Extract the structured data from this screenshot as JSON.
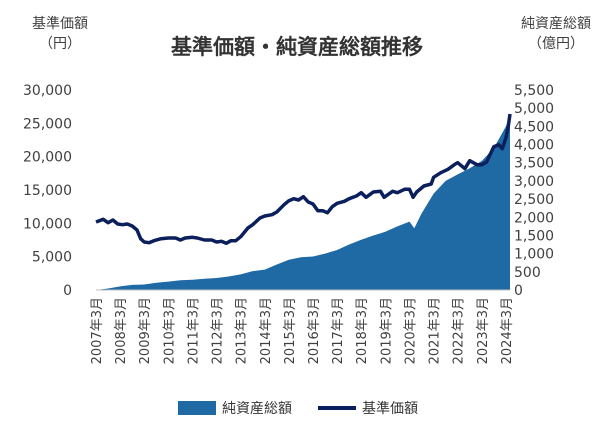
{
  "chart_data": {
    "type": "line",
    "title": "基準価額・純資産総額推移",
    "left_axis": {
      "label_line1": "基準価額",
      "label_line2": "（円）",
      "min": 0,
      "max": 30000,
      "ticks": [
        "0",
        "5,000",
        "10,000",
        "15,000",
        "20,000",
        "25,000",
        "30,000"
      ],
      "tick_values": [
        0,
        5000,
        10000,
        15000,
        20000,
        25000,
        30000
      ]
    },
    "right_axis": {
      "label_line1": "純資産総額",
      "label_line2": "（億円）",
      "min": 0,
      "max": 5500,
      "ticks": [
        "0",
        "500",
        "1,000",
        "1,500",
        "2,000",
        "2,500",
        "3,000",
        "3,500",
        "4,000",
        "4,500",
        "5,000",
        "5,500"
      ],
      "tick_values": [
        0,
        500,
        1000,
        1500,
        2000,
        2500,
        3000,
        3500,
        4000,
        4500,
        5000,
        5500
      ]
    },
    "x_labels": [
      "2007年3月",
      "2008年3月",
      "2009年3月",
      "2010年3月",
      "2011年3月",
      "2012年3月",
      "2013年3月",
      "2014年3月",
      "2015年3月",
      "2016年3月",
      "2017年3月",
      "2018年3月",
      "2019年3月",
      "2020年3月",
      "2021年3月",
      "2022年3月",
      "2023年3月",
      "2024年3月"
    ],
    "x_start": 2007.0,
    "x_end": 2024.17,
    "series": [
      {
        "name": "純資産総額",
        "kind": "area",
        "axis": "right",
        "color": "#1f6aa5",
        "points": [
          [
            2007.0,
            0
          ],
          [
            2007.5,
            40
          ],
          [
            2008.0,
            100
          ],
          [
            2008.5,
            140
          ],
          [
            2009.0,
            150
          ],
          [
            2009.5,
            200
          ],
          [
            2010.0,
            230
          ],
          [
            2010.5,
            270
          ],
          [
            2011.0,
            280
          ],
          [
            2011.5,
            310
          ],
          [
            2012.0,
            330
          ],
          [
            2012.5,
            370
          ],
          [
            2013.0,
            430
          ],
          [
            2013.5,
            520
          ],
          [
            2014.0,
            560
          ],
          [
            2014.5,
            700
          ],
          [
            2015.0,
            830
          ],
          [
            2015.5,
            900
          ],
          [
            2016.0,
            920
          ],
          [
            2016.5,
            1000
          ],
          [
            2017.0,
            1100
          ],
          [
            2017.5,
            1250
          ],
          [
            2018.0,
            1380
          ],
          [
            2018.5,
            1500
          ],
          [
            2019.0,
            1600
          ],
          [
            2019.5,
            1750
          ],
          [
            2020.0,
            1880
          ],
          [
            2020.2,
            1700
          ],
          [
            2020.5,
            2100
          ],
          [
            2021.0,
            2650
          ],
          [
            2021.5,
            3000
          ],
          [
            2022.0,
            3180
          ],
          [
            2022.5,
            3350
          ],
          [
            2023.0,
            3550
          ],
          [
            2023.5,
            3900
          ],
          [
            2024.0,
            4500
          ],
          [
            2024.17,
            4800
          ]
        ]
      },
      {
        "name": "基準価額",
        "kind": "line",
        "axis": "left",
        "color": "#0b1f5c",
        "points": [
          [
            2007.0,
            10200
          ],
          [
            2007.3,
            10600
          ],
          [
            2007.5,
            10100
          ],
          [
            2007.7,
            10500
          ],
          [
            2007.9,
            9900
          ],
          [
            2008.1,
            9800
          ],
          [
            2008.3,
            9900
          ],
          [
            2008.5,
            9600
          ],
          [
            2008.7,
            9000
          ],
          [
            2008.85,
            7700
          ],
          [
            2009.0,
            7200
          ],
          [
            2009.2,
            7100
          ],
          [
            2009.4,
            7400
          ],
          [
            2009.7,
            7700
          ],
          [
            2010.0,
            7800
          ],
          [
            2010.3,
            7800
          ],
          [
            2010.5,
            7500
          ],
          [
            2010.7,
            7800
          ],
          [
            2011.0,
            7900
          ],
          [
            2011.2,
            7800
          ],
          [
            2011.5,
            7500
          ],
          [
            2011.8,
            7500
          ],
          [
            2012.0,
            7200
          ],
          [
            2012.2,
            7300
          ],
          [
            2012.4,
            7000
          ],
          [
            2012.6,
            7400
          ],
          [
            2012.8,
            7400
          ],
          [
            2013.0,
            8000
          ],
          [
            2013.3,
            9300
          ],
          [
            2013.5,
            9800
          ],
          [
            2013.8,
            10800
          ],
          [
            2014.0,
            11100
          ],
          [
            2014.3,
            11300
          ],
          [
            2014.5,
            11700
          ],
          [
            2014.8,
            12800
          ],
          [
            2015.0,
            13400
          ],
          [
            2015.2,
            13700
          ],
          [
            2015.4,
            13500
          ],
          [
            2015.6,
            14000
          ],
          [
            2015.8,
            13200
          ],
          [
            2016.0,
            12900
          ],
          [
            2016.2,
            11900
          ],
          [
            2016.4,
            11900
          ],
          [
            2016.6,
            11600
          ],
          [
            2016.8,
            12500
          ],
          [
            2017.0,
            13000
          ],
          [
            2017.3,
            13300
          ],
          [
            2017.5,
            13700
          ],
          [
            2017.8,
            14100
          ],
          [
            2018.0,
            14600
          ],
          [
            2018.2,
            13900
          ],
          [
            2018.5,
            14700
          ],
          [
            2018.8,
            14800
          ],
          [
            2018.95,
            13900
          ],
          [
            2019.1,
            14300
          ],
          [
            2019.3,
            14800
          ],
          [
            2019.5,
            14600
          ],
          [
            2019.8,
            15100
          ],
          [
            2020.0,
            15100
          ],
          [
            2020.15,
            13900
          ],
          [
            2020.3,
            14700
          ],
          [
            2020.6,
            15600
          ],
          [
            2020.9,
            15900
          ],
          [
            2021.0,
            16900
          ],
          [
            2021.3,
            17600
          ],
          [
            2021.6,
            18100
          ],
          [
            2021.9,
            18900
          ],
          [
            2022.0,
            19100
          ],
          [
            2022.3,
            18200
          ],
          [
            2022.5,
            19400
          ],
          [
            2022.8,
            18800
          ],
          [
            2023.0,
            18800
          ],
          [
            2023.2,
            19200
          ],
          [
            2023.5,
            21500
          ],
          [
            2023.7,
            21800
          ],
          [
            2023.85,
            21200
          ],
          [
            2024.0,
            22800
          ],
          [
            2024.1,
            24600
          ],
          [
            2024.17,
            26400
          ]
        ]
      }
    ],
    "legend": {
      "placement": "bottom",
      "items": [
        "純資産総額",
        "基準価額"
      ]
    }
  }
}
